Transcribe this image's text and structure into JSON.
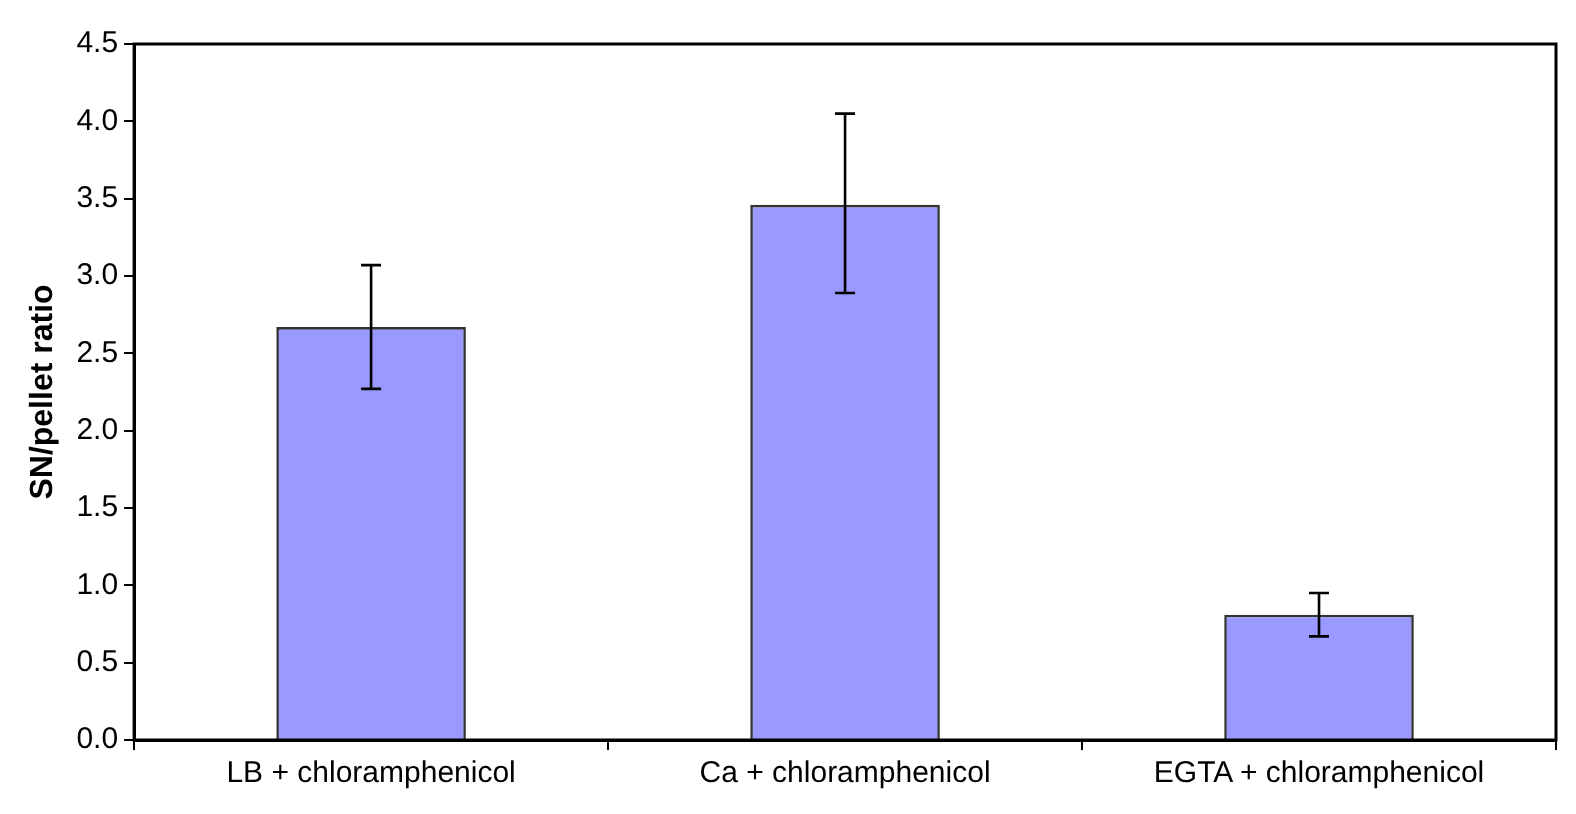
{
  "chart_data": {
    "type": "bar",
    "ylabel": "SN/pellet ratio",
    "categories": [
      "LB + chloramphenicol",
      "Ca + chloramphenicol",
      "EGTA + chloramphenicol"
    ],
    "values": [
      2.67,
      3.46,
      0.81
    ],
    "errors": [
      [
        2.27,
        3.07
      ],
      [
        2.89,
        4.05
      ],
      [
        0.67,
        0.95
      ]
    ],
    "color": "#9999ff",
    "ylim": [
      0,
      4.5
    ],
    "yticks": [
      {
        "value": 0,
        "label": "0.0"
      },
      {
        "value": 0.5,
        "label": "0.5"
      },
      {
        "value": 1,
        "label": "1.0"
      },
      {
        "value": 1.5,
        "label": "1.5"
      },
      {
        "value": 2,
        "label": "2.0"
      },
      {
        "value": 2.5,
        "label": "2.5"
      },
      {
        "value": 3,
        "label": "3.0"
      },
      {
        "value": 3.5,
        "label": "3.5"
      },
      {
        "value": 4,
        "label": "4.0"
      },
      {
        "value": 4.5,
        "label": "4.5"
      }
    ],
    "grid": false,
    "legend": false
  }
}
